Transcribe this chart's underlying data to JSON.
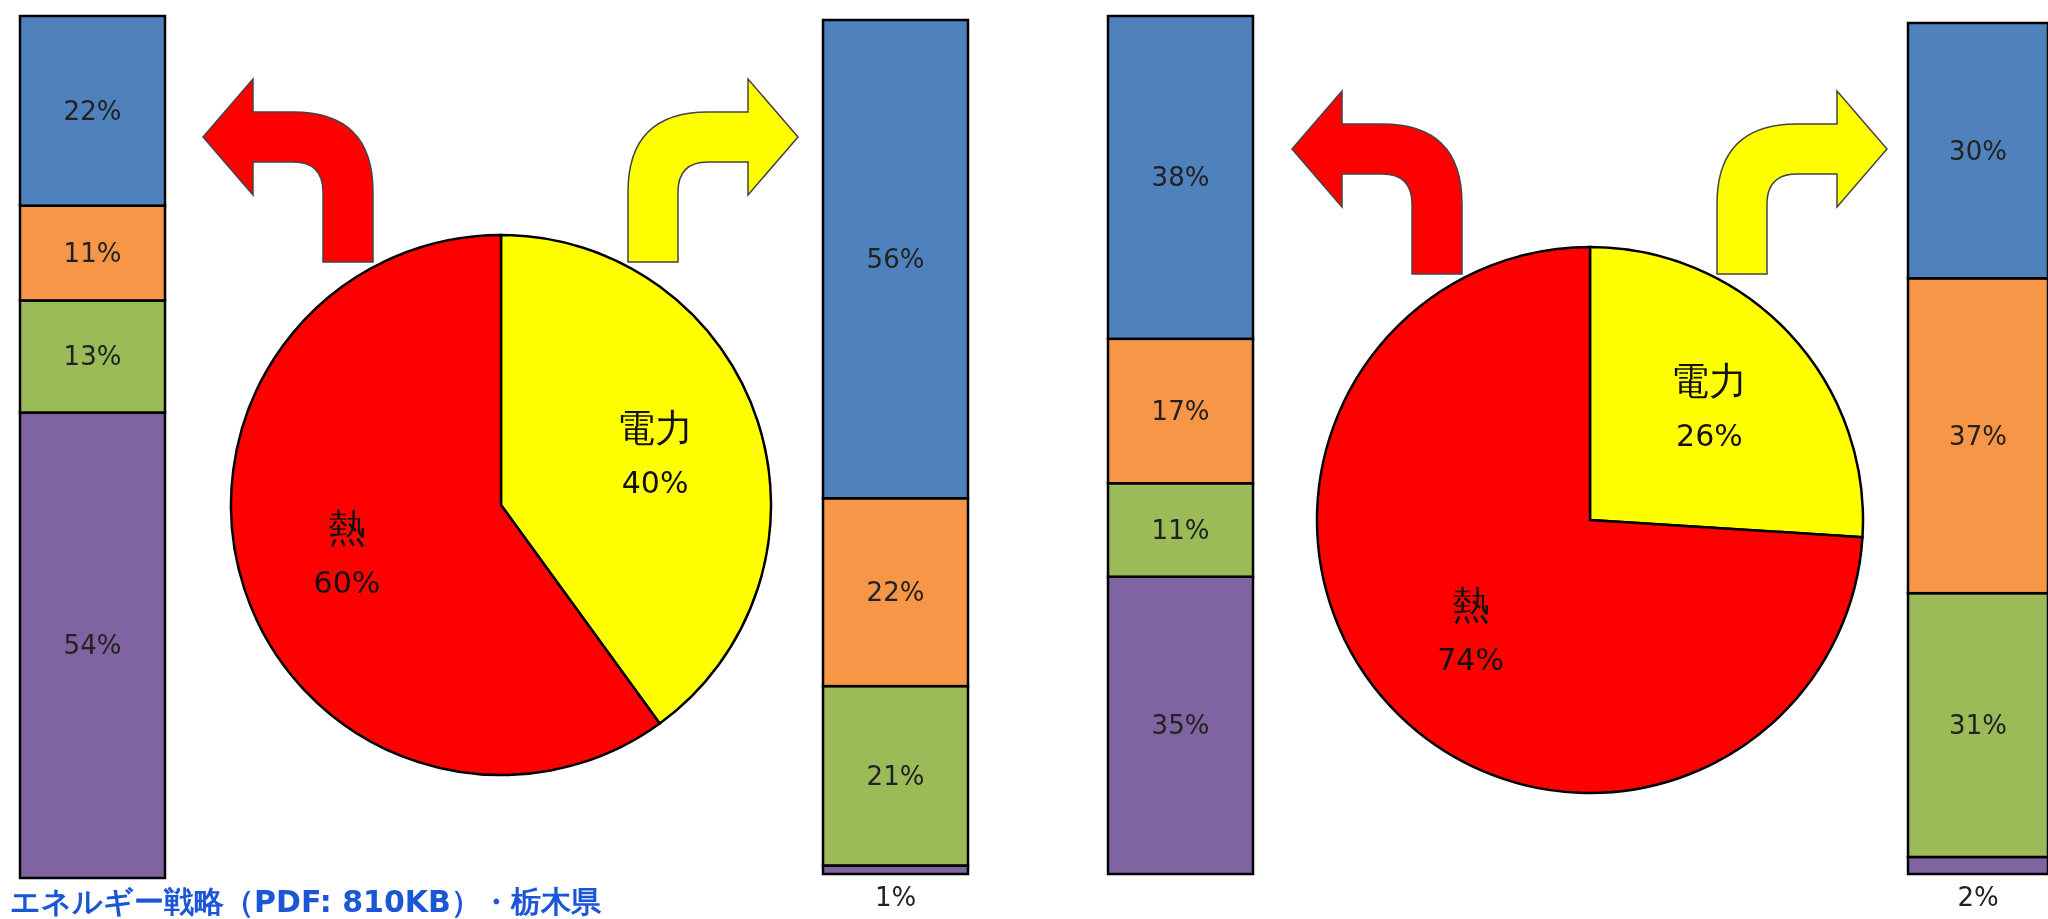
{
  "chart_data": [
    {
      "type": "bar",
      "stacked": true,
      "categories": [
        null
      ],
      "ylim": [
        0,
        100
      ],
      "series": [
        {
          "color": "#8064a2",
          "values": [
            54
          ],
          "value_labels": [
            "54%"
          ]
        },
        {
          "color": "#9bbb59",
          "values": [
            13
          ],
          "value_labels": [
            "13%"
          ]
        },
        {
          "color": "#f79646",
          "values": [
            11
          ],
          "value_labels": [
            "11%"
          ]
        },
        {
          "color": "#4f81bd",
          "values": [
            22
          ],
          "value_labels": [
            "22%"
          ]
        }
      ],
      "annotations": [
        "エネルギー戦略（PDF: 810KB）・栃木県"
      ]
    },
    {
      "type": "pie",
      "categories": [
        "電力",
        "熱"
      ],
      "values": [
        40,
        60
      ],
      "colors": [
        "#ffff00",
        "#ff0000"
      ],
      "value_labels": [
        "40%",
        "60%"
      ]
    },
    {
      "type": "bar",
      "stacked": true,
      "categories": [
        null
      ],
      "ylim": [
        0,
        100
      ],
      "series": [
        {
          "color": "#8064a2",
          "values": [
            1
          ],
          "value_labels": [
            "1%"
          ]
        },
        {
          "color": "#9bbb59",
          "values": [
            21
          ],
          "value_labels": [
            "21%"
          ]
        },
        {
          "color": "#f79646",
          "values": [
            22
          ],
          "value_labels": [
            "22%"
          ]
        },
        {
          "color": "#4f81bd",
          "values": [
            56
          ],
          "value_labels": [
            "56%"
          ]
        }
      ]
    },
    {
      "type": "bar",
      "stacked": true,
      "categories": [
        null
      ],
      "ylim": [
        0,
        101
      ],
      "series": [
        {
          "color": "#8064a2",
          "values": [
            35
          ],
          "value_labels": [
            "35%"
          ]
        },
        {
          "color": "#9bbb59",
          "values": [
            11
          ],
          "value_labels": [
            "11%"
          ]
        },
        {
          "color": "#f79646",
          "values": [
            17
          ],
          "value_labels": [
            "17%"
          ]
        },
        {
          "color": "#4f81bd",
          "values": [
            38
          ],
          "value_labels": [
            "38%"
          ]
        }
      ]
    },
    {
      "type": "pie",
      "categories": [
        "電力",
        "熱"
      ],
      "values": [
        26,
        74
      ],
      "colors": [
        "#ffff00",
        "#ff0000"
      ],
      "value_labels": [
        "26%",
        "74%"
      ]
    },
    {
      "type": "bar",
      "stacked": true,
      "categories": [
        null
      ],
      "ylim": [
        0,
        100
      ],
      "series": [
        {
          "color": "#8064a2",
          "values": [
            2
          ],
          "value_labels": [
            "2%"
          ]
        },
        {
          "color": "#9bbb59",
          "values": [
            31
          ],
          "value_labels": [
            "31%"
          ]
        },
        {
          "color": "#f79646",
          "values": [
            37
          ],
          "value_labels": [
            "37%"
          ]
        },
        {
          "color": "#4f81bd",
          "values": [
            30
          ],
          "value_labels": [
            "30%"
          ]
        }
      ]
    }
  ]
}
